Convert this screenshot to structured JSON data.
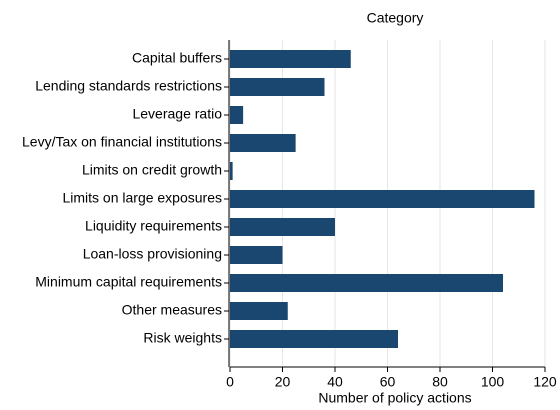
{
  "chart_data": {
    "type": "hbar",
    "title": "Category",
    "xlabel": "Number of policy actions",
    "categories": [
      "Capital buffers",
      "Lending standards restrictions",
      "Leverage ratio",
      "Levy/Tax on financial institutions",
      "Limits on credit growth",
      "Limits on large exposures",
      "Liquidity requirements",
      "Loan-loss provisioning",
      "Minimum capital requirements",
      "Other measures",
      "Risk weights"
    ],
    "values": [
      46,
      36,
      5,
      25,
      1,
      116,
      40,
      20,
      104,
      22,
      64
    ],
    "color": "#1a476f",
    "xlim": [
      0,
      120
    ],
    "xticks": [
      0,
      20,
      40,
      60,
      80,
      100,
      120
    ],
    "grid": true
  }
}
